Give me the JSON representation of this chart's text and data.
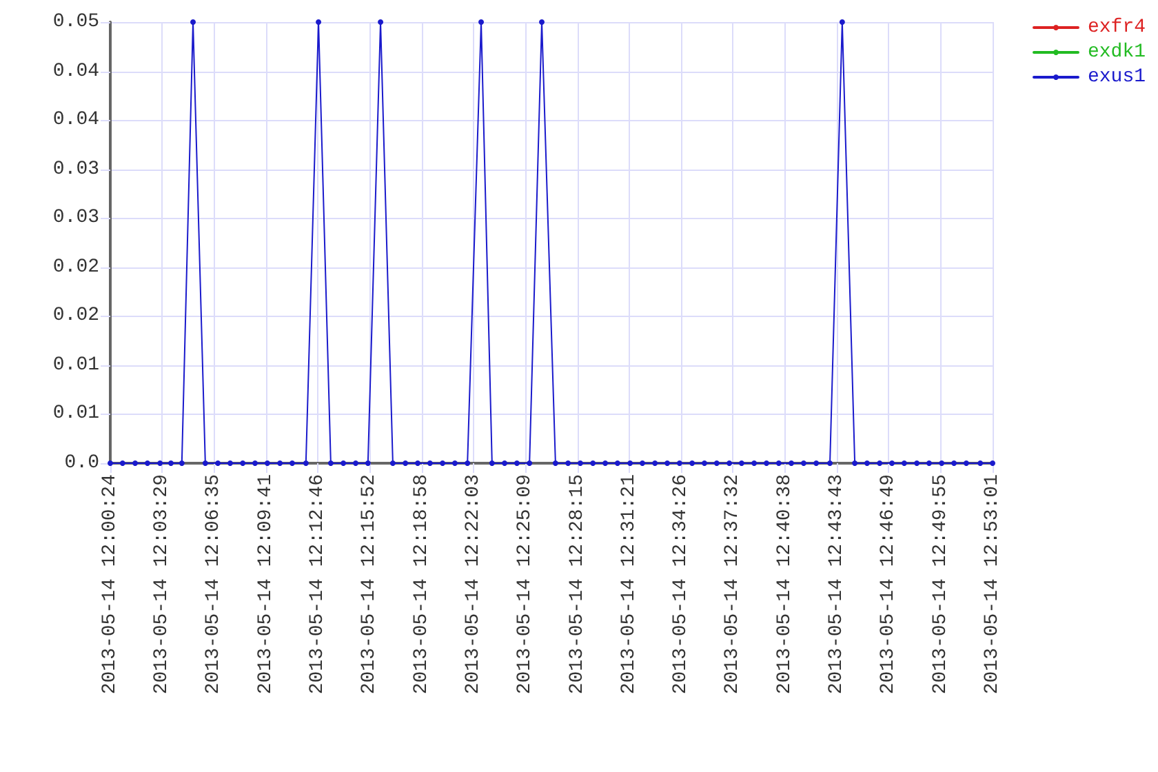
{
  "chart_data": {
    "type": "line",
    "x": [
      "2013-05-14T12:00:24",
      "2013-05-14T12:01:08",
      "2013-05-14T12:01:53",
      "2013-05-14T12:02:37",
      "2013-05-14T12:03:22",
      "2013-05-14T12:04:01",
      "2013-05-14T12:04:40",
      "2013-05-14T12:05:20",
      "2013-05-14T12:06:04",
      "2013-05-14T12:06:49",
      "2013-05-14T12:07:33",
      "2013-05-14T12:08:18",
      "2013-05-14T12:09:02",
      "2013-05-14T12:09:46",
      "2013-05-14T12:10:31",
      "2013-05-14T12:11:15",
      "2013-05-14T12:12:04",
      "2013-05-14T12:12:49",
      "2013-05-14T12:13:33",
      "2013-05-14T12:14:18",
      "2013-05-14T12:15:02",
      "2013-05-14T12:15:46",
      "2013-05-14T12:16:31",
      "2013-05-14T12:17:15",
      "2013-05-14T12:18:00",
      "2013-05-14T12:18:44",
      "2013-05-14T12:19:28",
      "2013-05-14T12:20:13",
      "2013-05-14T12:20:57",
      "2013-05-14T12:21:42",
      "2013-05-14T12:22:31",
      "2013-05-14T12:23:10",
      "2013-05-14T12:23:55",
      "2013-05-14T12:24:39",
      "2013-05-14T12:25:24",
      "2013-05-14T12:26:08",
      "2013-05-14T12:26:57",
      "2013-05-14T12:27:42",
      "2013-05-14T12:28:26",
      "2013-05-14T12:29:11",
      "2013-05-14T12:29:55",
      "2013-05-14T12:30:39",
      "2013-05-14T12:31:24",
      "2013-05-14T12:32:08",
      "2013-05-14T12:32:53",
      "2013-05-14T12:33:37",
      "2013-05-14T12:34:21",
      "2013-05-14T12:35:06",
      "2013-05-14T12:35:50",
      "2013-05-14T12:36:34",
      "2013-05-14T12:37:19",
      "2013-05-14T12:38:03",
      "2013-05-14T12:38:48",
      "2013-05-14T12:39:32",
      "2013-05-14T12:40:16",
      "2013-05-14T12:41:01",
      "2013-05-14T12:41:45",
      "2013-05-14T12:42:30",
      "2013-05-14T12:43:19",
      "2013-05-14T12:44:03",
      "2013-05-14T12:44:48",
      "2013-05-14T12:45:32",
      "2013-05-14T12:46:17",
      "2013-05-14T12:47:01",
      "2013-05-14T12:47:45",
      "2013-05-14T12:48:30",
      "2013-05-14T12:49:14",
      "2013-05-14T12:49:59",
      "2013-05-14T12:50:43",
      "2013-05-14T12:51:27",
      "2013-05-14T12:52:17",
      "2013-05-14T12:53:01"
    ],
    "series": [
      {
        "name": "exfr4",
        "color": "#dd2222",
        "values": [
          null,
          null,
          null,
          null,
          null,
          null,
          null,
          null,
          null,
          null,
          null,
          null,
          null,
          null,
          null,
          null,
          null,
          null,
          null,
          null,
          null,
          null,
          null,
          null,
          null,
          null,
          null,
          null,
          null,
          null,
          null,
          null,
          null,
          null,
          null,
          null,
          null,
          null,
          null,
          null,
          null,
          null,
          null,
          null,
          null,
          null,
          null,
          null,
          null,
          null,
          null,
          null,
          null,
          null,
          null,
          null,
          null,
          null,
          null,
          null,
          null,
          null,
          null,
          null,
          null,
          null,
          null,
          null,
          null,
          null,
          null,
          null
        ]
      },
      {
        "name": "exdk1",
        "color": "#22bb22",
        "values": [
          null,
          null,
          null,
          null,
          null,
          null,
          null,
          null,
          null,
          null,
          null,
          null,
          null,
          null,
          null,
          null,
          null,
          null,
          null,
          null,
          null,
          null,
          null,
          null,
          null,
          null,
          null,
          null,
          null,
          null,
          null,
          null,
          null,
          null,
          null,
          null,
          null,
          null,
          null,
          null,
          null,
          null,
          null,
          null,
          null,
          null,
          null,
          null,
          null,
          null,
          null,
          null,
          null,
          null,
          null,
          null,
          null,
          null,
          null,
          null,
          null,
          null,
          null,
          null,
          null,
          null,
          null,
          null,
          null,
          null,
          null,
          null
        ]
      },
      {
        "name": "exus1",
        "color": "#1a1acc",
        "values": [
          0,
          0,
          0,
          0,
          0,
          0,
          0,
          0.05,
          0,
          0,
          0,
          0,
          0,
          0,
          0,
          0,
          0,
          0.05,
          0,
          0,
          0,
          0,
          0.05,
          0,
          0,
          0,
          0,
          0,
          0,
          0,
          0.05,
          0,
          0,
          0,
          0,
          0.05,
          0,
          0,
          0,
          0,
          0,
          0,
          0,
          0,
          0,
          0,
          0,
          0,
          0,
          0,
          0,
          0,
          0,
          0,
          0,
          0,
          0,
          0,
          0,
          0.05,
          0,
          0,
          0,
          0,
          0,
          0,
          0,
          0,
          0,
          0,
          0,
          0
        ]
      }
    ],
    "xlim": [
      "2013-05-14T12:00:24",
      "2013-05-14T12:53:01"
    ],
    "xticks": [
      {
        "value": "2013-05-14T12:00:24",
        "label": "2013-05-14 12:00:24"
      },
      {
        "value": "2013-05-14T12:03:29",
        "label": "2013-05-14 12:03:29"
      },
      {
        "value": "2013-05-14T12:06:35",
        "label": "2013-05-14 12:06:35"
      },
      {
        "value": "2013-05-14T12:09:41",
        "label": "2013-05-14 12:09:41"
      },
      {
        "value": "2013-05-14T12:12:46",
        "label": "2013-05-14 12:12:46"
      },
      {
        "value": "2013-05-14T12:15:52",
        "label": "2013-05-14 12:15:52"
      },
      {
        "value": "2013-05-14T12:18:58",
        "label": "2013-05-14 12:18:58"
      },
      {
        "value": "2013-05-14T12:22:03",
        "label": "2013-05-14 12:22:03"
      },
      {
        "value": "2013-05-14T12:25:09",
        "label": "2013-05-14 12:25:09"
      },
      {
        "value": "2013-05-14T12:28:15",
        "label": "2013-05-14 12:28:15"
      },
      {
        "value": "2013-05-14T12:31:21",
        "label": "2013-05-14 12:31:21"
      },
      {
        "value": "2013-05-14T12:34:26",
        "label": "2013-05-14 12:34:26"
      },
      {
        "value": "2013-05-14T12:37:32",
        "label": "2013-05-14 12:37:32"
      },
      {
        "value": "2013-05-14T12:40:38",
        "label": "2013-05-14 12:40:38"
      },
      {
        "value": "2013-05-14T12:43:43",
        "label": "2013-05-14 12:43:43"
      },
      {
        "value": "2013-05-14T12:46:49",
        "label": "2013-05-14 12:46:49"
      },
      {
        "value": "2013-05-14T12:49:55",
        "label": "2013-05-14 12:49:55"
      },
      {
        "value": "2013-05-14T12:53:01",
        "label": "2013-05-14 12:53:01"
      }
    ],
    "ylim": [
      0,
      0.05
    ],
    "yticks": [
      {
        "value": 0,
        "label": "0.0"
      },
      {
        "value": 0.0056,
        "label": "0.01"
      },
      {
        "value": 0.0111,
        "label": "0.01"
      },
      {
        "value": 0.0167,
        "label": "0.02"
      },
      {
        "value": 0.0222,
        "label": "0.02"
      },
      {
        "value": 0.0278,
        "label": "0.03"
      },
      {
        "value": 0.0333,
        "label": "0.03"
      },
      {
        "value": 0.0389,
        "label": "0.04"
      },
      {
        "value": 0.0444,
        "label": "0.04"
      },
      0.05
    ],
    "grid": true,
    "legend": "top right",
    "marker": "circle",
    "line_style": "solid"
  }
}
